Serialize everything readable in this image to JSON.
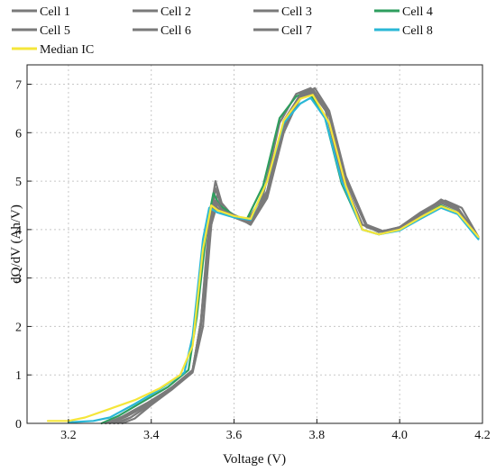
{
  "chart_data": {
    "type": "line",
    "xlabel": "Voltage (V)",
    "ylabel": "dQ/dV (Ah/V)",
    "xlim": [
      3.1,
      4.2
    ],
    "ylim": [
      0,
      7.4
    ],
    "x_ticks": [
      3.2,
      3.4,
      3.6,
      3.8,
      4.0,
      4.2
    ],
    "y_ticks": [
      0,
      1,
      2,
      3,
      4,
      5,
      6,
      7
    ],
    "grid": true,
    "legend_position": "top",
    "series": [
      {
        "name": "Cell 1",
        "color": "#7a7a7a",
        "points": [
          [
            3.32,
            0
          ],
          [
            3.35,
            0.12
          ],
          [
            3.4,
            0.4
          ],
          [
            3.45,
            0.7
          ],
          [
            3.5,
            1.1
          ],
          [
            3.52,
            2.0
          ],
          [
            3.54,
            4.0
          ],
          [
            3.555,
            4.85
          ],
          [
            3.57,
            4.45
          ],
          [
            3.6,
            4.3
          ],
          [
            3.64,
            4.1
          ],
          [
            3.68,
            4.8
          ],
          [
            3.72,
            6.2
          ],
          [
            3.76,
            6.8
          ],
          [
            3.79,
            6.9
          ],
          [
            3.83,
            6.4
          ],
          [
            3.87,
            5.0
          ],
          [
            3.92,
            4.1
          ],
          [
            3.96,
            3.95
          ],
          [
            4.0,
            4.05
          ],
          [
            4.05,
            4.35
          ],
          [
            4.1,
            4.6
          ],
          [
            4.14,
            4.45
          ],
          [
            4.19,
            3.85
          ]
        ]
      },
      {
        "name": "Cell 2",
        "color": "#7a7a7a",
        "points": [
          [
            3.3,
            0
          ],
          [
            3.34,
            0.15
          ],
          [
            3.4,
            0.45
          ],
          [
            3.45,
            0.75
          ],
          [
            3.5,
            1.1
          ],
          [
            3.52,
            2.1
          ],
          [
            3.54,
            4.2
          ],
          [
            3.555,
            5.0
          ],
          [
            3.57,
            4.55
          ],
          [
            3.6,
            4.25
          ],
          [
            3.63,
            4.15
          ],
          [
            3.67,
            4.7
          ],
          [
            3.71,
            6.2
          ],
          [
            3.75,
            6.8
          ],
          [
            3.785,
            6.92
          ],
          [
            3.82,
            6.5
          ],
          [
            3.86,
            5.1
          ],
          [
            3.91,
            4.1
          ],
          [
            3.95,
            3.95
          ],
          [
            4.0,
            4.05
          ],
          [
            4.05,
            4.3
          ],
          [
            4.1,
            4.62
          ],
          [
            4.14,
            4.45
          ],
          [
            4.19,
            3.85
          ]
        ]
      },
      {
        "name": "Cell 3",
        "color": "#7a7a7a",
        "points": [
          [
            3.33,
            0
          ],
          [
            3.36,
            0.1
          ],
          [
            3.4,
            0.38
          ],
          [
            3.45,
            0.7
          ],
          [
            3.5,
            1.05
          ],
          [
            3.525,
            2.0
          ],
          [
            3.545,
            4.1
          ],
          [
            3.56,
            4.75
          ],
          [
            3.575,
            4.4
          ],
          [
            3.6,
            4.3
          ],
          [
            3.64,
            4.1
          ],
          [
            3.68,
            4.65
          ],
          [
            3.72,
            6.0
          ],
          [
            3.76,
            6.75
          ],
          [
            3.795,
            6.92
          ],
          [
            3.83,
            6.45
          ],
          [
            3.87,
            5.1
          ],
          [
            3.92,
            4.1
          ],
          [
            3.96,
            3.97
          ],
          [
            4.0,
            4.05
          ],
          [
            4.05,
            4.35
          ],
          [
            4.11,
            4.6
          ],
          [
            4.15,
            4.45
          ],
          [
            4.19,
            3.85
          ]
        ]
      },
      {
        "name": "Cell 4",
        "color": "#2e9e5e",
        "points": [
          [
            3.28,
            0
          ],
          [
            3.32,
            0.15
          ],
          [
            3.38,
            0.45
          ],
          [
            3.44,
            0.75
          ],
          [
            3.49,
            1.1
          ],
          [
            3.51,
            2.2
          ],
          [
            3.535,
            4.1
          ],
          [
            3.55,
            4.75
          ],
          [
            3.565,
            4.5
          ],
          [
            3.6,
            4.3
          ],
          [
            3.63,
            4.2
          ],
          [
            3.67,
            4.9
          ],
          [
            3.71,
            6.3
          ],
          [
            3.75,
            6.75
          ],
          [
            3.78,
            6.85
          ],
          [
            3.82,
            6.3
          ],
          [
            3.86,
            4.95
          ],
          [
            3.91,
            4.0
          ],
          [
            3.95,
            3.9
          ],
          [
            4.0,
            4.0
          ],
          [
            4.05,
            4.25
          ],
          [
            4.1,
            4.5
          ],
          [
            4.14,
            4.35
          ],
          [
            4.19,
            3.85
          ]
        ]
      },
      {
        "name": "Cell 5",
        "color": "#7a7a7a",
        "points": [
          [
            3.31,
            0
          ],
          [
            3.35,
            0.12
          ],
          [
            3.4,
            0.4
          ],
          [
            3.45,
            0.72
          ],
          [
            3.5,
            1.08
          ],
          [
            3.52,
            2.05
          ],
          [
            3.545,
            4.1
          ],
          [
            3.56,
            4.55
          ],
          [
            3.575,
            4.35
          ],
          [
            3.6,
            4.3
          ],
          [
            3.64,
            4.15
          ],
          [
            3.68,
            4.7
          ],
          [
            3.72,
            6.1
          ],
          [
            3.76,
            6.7
          ],
          [
            3.79,
            6.82
          ],
          [
            3.83,
            6.35
          ],
          [
            3.87,
            5.0
          ],
          [
            3.92,
            4.05
          ],
          [
            3.96,
            3.95
          ],
          [
            4.0,
            4.05
          ],
          [
            4.05,
            4.3
          ],
          [
            4.1,
            4.55
          ],
          [
            4.14,
            4.42
          ],
          [
            4.19,
            3.85
          ]
        ]
      },
      {
        "name": "Cell 6",
        "color": "#7a7a7a",
        "points": [
          [
            3.3,
            0
          ],
          [
            3.34,
            0.14
          ],
          [
            3.4,
            0.42
          ],
          [
            3.45,
            0.74
          ],
          [
            3.5,
            1.1
          ],
          [
            3.52,
            2.1
          ],
          [
            3.54,
            4.0
          ],
          [
            3.555,
            4.5
          ],
          [
            3.57,
            4.35
          ],
          [
            3.6,
            4.28
          ],
          [
            3.64,
            4.12
          ],
          [
            3.68,
            4.75
          ],
          [
            3.72,
            6.15
          ],
          [
            3.76,
            6.72
          ],
          [
            3.79,
            6.85
          ],
          [
            3.83,
            6.35
          ],
          [
            3.87,
            5.0
          ],
          [
            3.92,
            4.05
          ],
          [
            3.96,
            3.95
          ],
          [
            4.0,
            4.03
          ],
          [
            4.05,
            4.3
          ],
          [
            4.1,
            4.55
          ],
          [
            4.14,
            4.4
          ],
          [
            4.19,
            3.85
          ]
        ]
      },
      {
        "name": "Cell 7",
        "color": "#7a7a7a",
        "points": [
          [
            3.29,
            0
          ],
          [
            3.33,
            0.14
          ],
          [
            3.39,
            0.42
          ],
          [
            3.45,
            0.74
          ],
          [
            3.5,
            1.1
          ],
          [
            3.52,
            2.1
          ],
          [
            3.54,
            4.05
          ],
          [
            3.555,
            4.6
          ],
          [
            3.57,
            4.4
          ],
          [
            3.6,
            4.3
          ],
          [
            3.64,
            4.15
          ],
          [
            3.68,
            4.8
          ],
          [
            3.72,
            6.25
          ],
          [
            3.76,
            6.78
          ],
          [
            3.79,
            6.88
          ],
          [
            3.83,
            6.4
          ],
          [
            3.87,
            5.05
          ],
          [
            3.92,
            4.05
          ],
          [
            3.96,
            3.95
          ],
          [
            4.0,
            4.03
          ],
          [
            4.05,
            4.3
          ],
          [
            4.1,
            4.55
          ],
          [
            4.14,
            4.42
          ],
          [
            4.19,
            3.82
          ]
        ]
      },
      {
        "name": "Cell 8",
        "color": "#2ab7d6",
        "points": [
          [
            3.2,
            0.02
          ],
          [
            3.26,
            0.05
          ],
          [
            3.3,
            0.12
          ],
          [
            3.36,
            0.4
          ],
          [
            3.42,
            0.7
          ],
          [
            3.48,
            1.05
          ],
          [
            3.5,
            1.8
          ],
          [
            3.525,
            3.8
          ],
          [
            3.54,
            4.45
          ],
          [
            3.56,
            4.35
          ],
          [
            3.6,
            4.25
          ],
          [
            3.64,
            4.2
          ],
          [
            3.68,
            5.0
          ],
          [
            3.72,
            6.2
          ],
          [
            3.76,
            6.6
          ],
          [
            3.785,
            6.72
          ],
          [
            3.82,
            6.3
          ],
          [
            3.86,
            5.0
          ],
          [
            3.91,
            4.0
          ],
          [
            3.95,
            3.9
          ],
          [
            4.0,
            3.98
          ],
          [
            4.05,
            4.22
          ],
          [
            4.1,
            4.45
          ],
          [
            4.14,
            4.32
          ],
          [
            4.19,
            3.8
          ]
        ]
      },
      {
        "name": "Median IC",
        "color": "#f5e63a",
        "points": [
          [
            3.15,
            0.05
          ],
          [
            3.2,
            0.05
          ],
          [
            3.24,
            0.12
          ],
          [
            3.3,
            0.3
          ],
          [
            3.36,
            0.48
          ],
          [
            3.42,
            0.72
          ],
          [
            3.47,
            1.0
          ],
          [
            3.5,
            1.6
          ],
          [
            3.525,
            3.6
          ],
          [
            3.545,
            4.5
          ],
          [
            3.56,
            4.4
          ],
          [
            3.6,
            4.28
          ],
          [
            3.64,
            4.22
          ],
          [
            3.68,
            5.0
          ],
          [
            3.72,
            6.25
          ],
          [
            3.76,
            6.7
          ],
          [
            3.79,
            6.78
          ],
          [
            3.83,
            6.2
          ],
          [
            3.87,
            4.9
          ],
          [
            3.91,
            4.0
          ],
          [
            3.95,
            3.9
          ],
          [
            4.0,
            4.0
          ],
          [
            4.05,
            4.25
          ],
          [
            4.1,
            4.48
          ],
          [
            4.14,
            4.35
          ],
          [
            4.19,
            3.85
          ]
        ]
      }
    ]
  }
}
